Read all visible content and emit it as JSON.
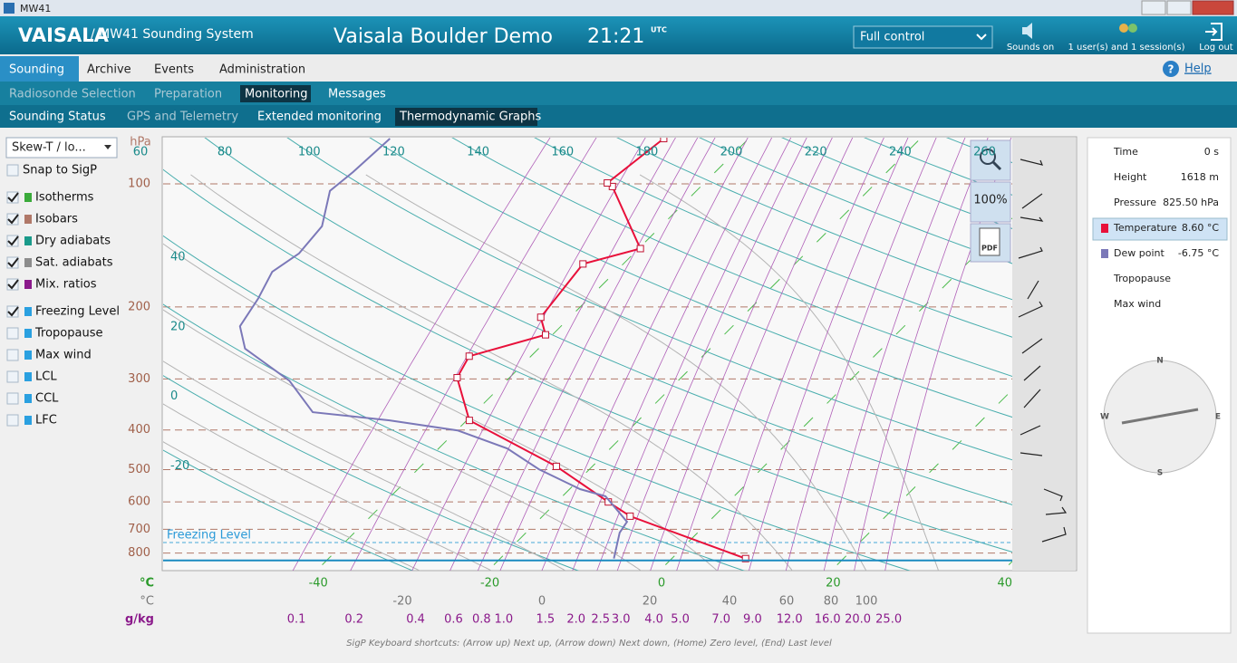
{
  "window_title": "MW41",
  "header": {
    "logo": "VAISALA",
    "system": "/ MW41 Sounding System",
    "station": "Vaisala Boulder Demo",
    "time": "21:21",
    "time_zone": "UTC",
    "control": "Full control",
    "sounds": "Sounds on",
    "users": "1 user(s) and 1 session(s)",
    "logout": "Log out"
  },
  "tabs": [
    "Sounding",
    "Archive",
    "Events",
    "Administration"
  ],
  "help": "Help",
  "subtabs": [
    "Radiosonde Selection",
    "Preparation",
    "Monitoring",
    "Messages"
  ],
  "subtabs2": [
    "Sounding Status",
    "GPS and Telemetry",
    "Extended monitoring",
    "Thermodynamic Graphs"
  ],
  "sidebar": {
    "view": "Skew-T / lo...",
    "options": [
      {
        "label": "Snap to SigP",
        "checked": false
      },
      {
        "label": "Isotherms",
        "checked": true,
        "color": "#3aaa3a"
      },
      {
        "label": "Isobars",
        "checked": true,
        "color": "#b07868"
      },
      {
        "label": "Dry adiabats",
        "checked": true,
        "color": "#1a9a8a"
      },
      {
        "label": "Sat. adiabats",
        "checked": true,
        "color": "#8c8c8c"
      },
      {
        "label": "Mix. ratios",
        "checked": true,
        "color": "#8b1a8b"
      },
      {
        "label": "Freezing Level",
        "checked": true,
        "color": "#2aa0e0"
      },
      {
        "label": "Tropopause",
        "checked": false,
        "color": "#2aa0e0"
      },
      {
        "label": "Max wind",
        "checked": false,
        "color": "#2aa0e0"
      },
      {
        "label": "LCL",
        "checked": false,
        "color": "#2aa0e0"
      },
      {
        "label": "CCL",
        "checked": false,
        "color": "#2aa0e0"
      },
      {
        "label": "LFC",
        "checked": false,
        "color": "#2aa0e0"
      }
    ]
  },
  "zoom": "100%",
  "pdf": "PDF",
  "info": {
    "rows": [
      {
        "label": "Time",
        "value": "0 s"
      },
      {
        "label": "Height",
        "value": "1618 m"
      },
      {
        "label": "Pressure",
        "value": "825.50 hPa"
      }
    ],
    "temperature": "8.60 °C",
    "dew_point": "-6.75 °C",
    "tropopause": "Tropopause",
    "max_wind": "Max wind"
  },
  "compass": {
    "n": "N",
    "e": "E",
    "s": "S",
    "w": "W"
  },
  "footer": "SigP Keyboard shortcuts: (Arrow up) Next up, (Arrow down) Next down, (Home) Zero level, (End) Last level",
  "chart_data": {
    "type": "skew-t",
    "y_unit": "hPa",
    "pressure_ticks": [
      100,
      200,
      300,
      400,
      500,
      600,
      700,
      800
    ],
    "x_unit": "°C",
    "temperature_ticks": [
      -40,
      -20,
      0,
      20,
      40
    ],
    "dry_adiabat_labels_left": [
      40,
      20,
      0,
      -20
    ],
    "dry_adiabat_labels_top": [
      60,
      80,
      100,
      120,
      140,
      160,
      180,
      200,
      220,
      240,
      260
    ],
    "second_unit": "°C",
    "second_scale": [
      -20,
      0,
      20,
      40,
      60,
      80,
      100
    ],
    "mixing_unit": "g/kg",
    "mixing_ratios": [
      0.1,
      0.2,
      0.4,
      0.6,
      0.8,
      {
        "value": 1,
        "label": "1.0"
      },
      1.5,
      {
        "value": 2,
        "label": "2.0"
      },
      2.5,
      {
        "value": 3,
        "label": "3.0"
      },
      {
        "value": 4,
        "label": "4.0"
      },
      {
        "value": 5,
        "label": "5.0"
      },
      {
        "value": 7,
        "label": "7.0"
      },
      {
        "value": 9,
        "label": "9.0"
      },
      {
        "value": 12,
        "label": "12.0"
      },
      {
        "value": 16,
        "label": "16.0"
      },
      {
        "value": 20,
        "label": "20.0"
      },
      {
        "value": 25,
        "label": "25.0"
      }
    ],
    "freezing_level": {
      "label": "Freezing Level",
      "pressure": 754
    },
    "series": [
      {
        "name": "Temperature",
        "color": "#e8103a",
        "pressure": [
          825.5,
          650,
          600,
          491,
          379,
          298,
          264,
          234,
          212,
          157,
          144,
          101.5,
          99.5,
          77.5
        ],
        "values": [
          8.6,
          -9.8,
          -14.0,
          -24.2,
          -39.7,
          -46.1,
          -47.2,
          -40.8,
          -43.4,
          -44.7,
          -39.8,
          -50.3,
          -51.3,
          -49.9
        ]
      },
      {
        "name": "Dew point",
        "color": "#7b78b8",
        "pressure": [
          825.5,
          713,
          671,
          581,
          558,
          499,
          444,
          401,
          379,
          362,
          303,
          253,
          223,
          191,
          164,
          148,
          127,
          104,
          93.6,
          77.5
        ],
        "values": [
          -6.75,
          -9.1,
          -9.5,
          -15.0,
          -18.8,
          -25.9,
          -32.0,
          -39.9,
          -49.0,
          -58.9,
          -65.3,
          -74.2,
          -77.4,
          -78.5,
          -80.0,
          -79.0,
          -79.5,
          -82.7,
          -82.2,
          -81.8
        ]
      }
    ]
  }
}
